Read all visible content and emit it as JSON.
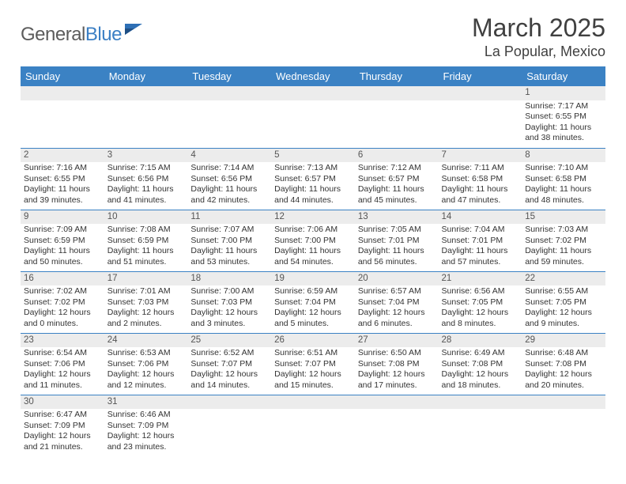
{
  "brand": {
    "part1": "General",
    "part2": "Blue"
  },
  "title": "March 2025",
  "location": "La Popular, Mexico",
  "colors": {
    "header_bg": "#3b82c4",
    "header_text": "#ffffff",
    "daybar_bg": "#ececec",
    "text": "#333333",
    "border": "#3b82c4"
  },
  "fonts": {
    "base": "Arial",
    "title_size": 32,
    "header_size": 13,
    "body_size": 10.5
  },
  "weekdays": [
    "Sunday",
    "Monday",
    "Tuesday",
    "Wednesday",
    "Thursday",
    "Friday",
    "Saturday"
  ],
  "weeks": [
    [
      null,
      null,
      null,
      null,
      null,
      null,
      {
        "n": "1",
        "sr": "Sunrise: 7:17 AM",
        "ss": "Sunset: 6:55 PM",
        "dl": "Daylight: 11 hours and 38 minutes."
      }
    ],
    [
      {
        "n": "2",
        "sr": "Sunrise: 7:16 AM",
        "ss": "Sunset: 6:55 PM",
        "dl": "Daylight: 11 hours and 39 minutes."
      },
      {
        "n": "3",
        "sr": "Sunrise: 7:15 AM",
        "ss": "Sunset: 6:56 PM",
        "dl": "Daylight: 11 hours and 41 minutes."
      },
      {
        "n": "4",
        "sr": "Sunrise: 7:14 AM",
        "ss": "Sunset: 6:56 PM",
        "dl": "Daylight: 11 hours and 42 minutes."
      },
      {
        "n": "5",
        "sr": "Sunrise: 7:13 AM",
        "ss": "Sunset: 6:57 PM",
        "dl": "Daylight: 11 hours and 44 minutes."
      },
      {
        "n": "6",
        "sr": "Sunrise: 7:12 AM",
        "ss": "Sunset: 6:57 PM",
        "dl": "Daylight: 11 hours and 45 minutes."
      },
      {
        "n": "7",
        "sr": "Sunrise: 7:11 AM",
        "ss": "Sunset: 6:58 PM",
        "dl": "Daylight: 11 hours and 47 minutes."
      },
      {
        "n": "8",
        "sr": "Sunrise: 7:10 AM",
        "ss": "Sunset: 6:58 PM",
        "dl": "Daylight: 11 hours and 48 minutes."
      }
    ],
    [
      {
        "n": "9",
        "sr": "Sunrise: 7:09 AM",
        "ss": "Sunset: 6:59 PM",
        "dl": "Daylight: 11 hours and 50 minutes."
      },
      {
        "n": "10",
        "sr": "Sunrise: 7:08 AM",
        "ss": "Sunset: 6:59 PM",
        "dl": "Daylight: 11 hours and 51 minutes."
      },
      {
        "n": "11",
        "sr": "Sunrise: 7:07 AM",
        "ss": "Sunset: 7:00 PM",
        "dl": "Daylight: 11 hours and 53 minutes."
      },
      {
        "n": "12",
        "sr": "Sunrise: 7:06 AM",
        "ss": "Sunset: 7:00 PM",
        "dl": "Daylight: 11 hours and 54 minutes."
      },
      {
        "n": "13",
        "sr": "Sunrise: 7:05 AM",
        "ss": "Sunset: 7:01 PM",
        "dl": "Daylight: 11 hours and 56 minutes."
      },
      {
        "n": "14",
        "sr": "Sunrise: 7:04 AM",
        "ss": "Sunset: 7:01 PM",
        "dl": "Daylight: 11 hours and 57 minutes."
      },
      {
        "n": "15",
        "sr": "Sunrise: 7:03 AM",
        "ss": "Sunset: 7:02 PM",
        "dl": "Daylight: 11 hours and 59 minutes."
      }
    ],
    [
      {
        "n": "16",
        "sr": "Sunrise: 7:02 AM",
        "ss": "Sunset: 7:02 PM",
        "dl": "Daylight: 12 hours and 0 minutes."
      },
      {
        "n": "17",
        "sr": "Sunrise: 7:01 AM",
        "ss": "Sunset: 7:03 PM",
        "dl": "Daylight: 12 hours and 2 minutes."
      },
      {
        "n": "18",
        "sr": "Sunrise: 7:00 AM",
        "ss": "Sunset: 7:03 PM",
        "dl": "Daylight: 12 hours and 3 minutes."
      },
      {
        "n": "19",
        "sr": "Sunrise: 6:59 AM",
        "ss": "Sunset: 7:04 PM",
        "dl": "Daylight: 12 hours and 5 minutes."
      },
      {
        "n": "20",
        "sr": "Sunrise: 6:57 AM",
        "ss": "Sunset: 7:04 PM",
        "dl": "Daylight: 12 hours and 6 minutes."
      },
      {
        "n": "21",
        "sr": "Sunrise: 6:56 AM",
        "ss": "Sunset: 7:05 PM",
        "dl": "Daylight: 12 hours and 8 minutes."
      },
      {
        "n": "22",
        "sr": "Sunrise: 6:55 AM",
        "ss": "Sunset: 7:05 PM",
        "dl": "Daylight: 12 hours and 9 minutes."
      }
    ],
    [
      {
        "n": "23",
        "sr": "Sunrise: 6:54 AM",
        "ss": "Sunset: 7:06 PM",
        "dl": "Daylight: 12 hours and 11 minutes."
      },
      {
        "n": "24",
        "sr": "Sunrise: 6:53 AM",
        "ss": "Sunset: 7:06 PM",
        "dl": "Daylight: 12 hours and 12 minutes."
      },
      {
        "n": "25",
        "sr": "Sunrise: 6:52 AM",
        "ss": "Sunset: 7:07 PM",
        "dl": "Daylight: 12 hours and 14 minutes."
      },
      {
        "n": "26",
        "sr": "Sunrise: 6:51 AM",
        "ss": "Sunset: 7:07 PM",
        "dl": "Daylight: 12 hours and 15 minutes."
      },
      {
        "n": "27",
        "sr": "Sunrise: 6:50 AM",
        "ss": "Sunset: 7:08 PM",
        "dl": "Daylight: 12 hours and 17 minutes."
      },
      {
        "n": "28",
        "sr": "Sunrise: 6:49 AM",
        "ss": "Sunset: 7:08 PM",
        "dl": "Daylight: 12 hours and 18 minutes."
      },
      {
        "n": "29",
        "sr": "Sunrise: 6:48 AM",
        "ss": "Sunset: 7:08 PM",
        "dl": "Daylight: 12 hours and 20 minutes."
      }
    ],
    [
      {
        "n": "30",
        "sr": "Sunrise: 6:47 AM",
        "ss": "Sunset: 7:09 PM",
        "dl": "Daylight: 12 hours and 21 minutes."
      },
      {
        "n": "31",
        "sr": "Sunrise: 6:46 AM",
        "ss": "Sunset: 7:09 PM",
        "dl": "Daylight: 12 hours and 23 minutes."
      },
      null,
      null,
      null,
      null,
      null
    ]
  ]
}
